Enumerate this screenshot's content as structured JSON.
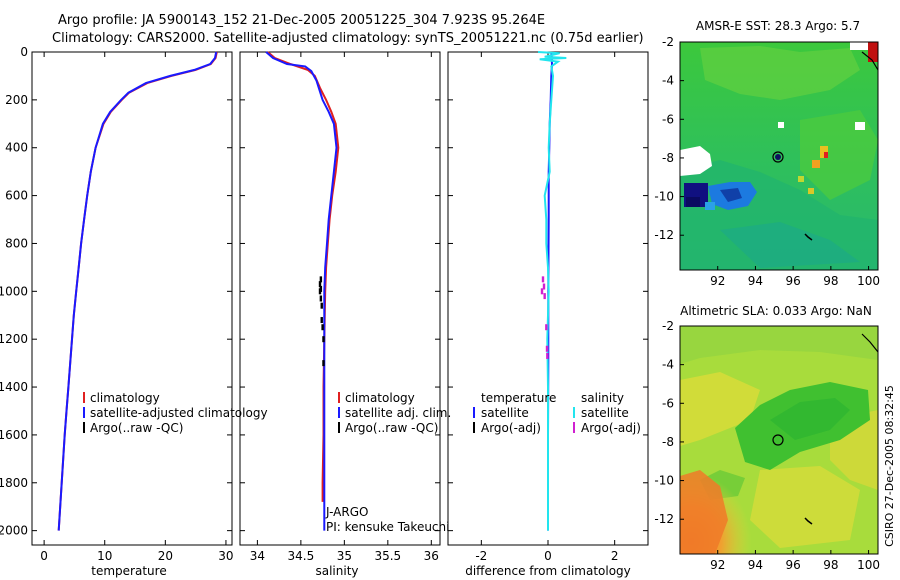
{
  "header": {
    "line1": "Argo profile: JA 5900143_152 21-Dec-2005 20051225_304 7.923S 95.264E",
    "line2": "Climatology: CARS2000. Satellite-adjusted climatology: synTS_20051221.nc (0.75d earlier)"
  },
  "side_stamp": "CSIRO 27-Dec-2005 08:32:45",
  "colors": {
    "climatology": "#e02020",
    "satellite": "#1a1aff",
    "argo": "#000000",
    "sal_satellite": "#22e5ee",
    "sal_argo": "#d020d0"
  },
  "chart_data": [
    {
      "type": "line",
      "xlabel": "temperature",
      "ylabel": "",
      "xlim": [
        -2,
        31
      ],
      "ylim": [
        2060,
        0
      ],
      "xticks": [
        0,
        10,
        20,
        30
      ],
      "xtick_labels": [
        "0",
        "10",
        "20",
        "30"
      ],
      "yticks": [
        0,
        200,
        400,
        600,
        800,
        1000,
        1200,
        1400,
        1600,
        1800,
        2000
      ],
      "ytick_labels": [
        "0",
        "200",
        "400",
        "600",
        "800",
        "1000",
        "1200",
        "1400",
        "1600",
        "1800",
        "2000"
      ],
      "legend": [
        "climatology",
        "satellite-adjusted climatology",
        "Argo(..raw -QC)"
      ],
      "series": [
        {
          "name": "climatology",
          "color_key": "climatology",
          "points": [
            [
              28.5,
              0
            ],
            [
              28.3,
              25
            ],
            [
              27.5,
              50
            ],
            [
              25,
              75
            ],
            [
              21,
              100
            ],
            [
              17,
              130
            ],
            [
              14,
              170
            ],
            [
              12.8,
              200
            ],
            [
              11,
              250
            ],
            [
              9.8,
              300
            ],
            [
              8.5,
              400
            ],
            [
              7.7,
              500
            ],
            [
              7.1,
              600
            ],
            [
              6.6,
              700
            ],
            [
              6.1,
              800
            ],
            [
              5.7,
              900
            ],
            [
              5.3,
              1000
            ],
            [
              4.9,
              1100
            ],
            [
              4.6,
              1200
            ],
            [
              4.3,
              1300
            ],
            [
              4,
              1400
            ],
            [
              3.7,
              1500
            ],
            [
              3.4,
              1600
            ],
            [
              3.15,
              1700
            ],
            [
              2.9,
              1800
            ],
            [
              2.65,
              1900
            ],
            [
              2.4,
              2000
            ]
          ]
        },
        {
          "name": "satellite-adjusted climatology",
          "color_key": "satellite",
          "points": [
            [
              28.4,
              0
            ],
            [
              28.2,
              25
            ],
            [
              27.4,
              50
            ],
            [
              24.8,
              75
            ],
            [
              20.8,
              100
            ],
            [
              16.8,
              130
            ],
            [
              13.9,
              170
            ],
            [
              12.7,
              200
            ],
            [
              10.9,
              250
            ],
            [
              9.7,
              300
            ],
            [
              8.5,
              400
            ],
            [
              7.7,
              500
            ],
            [
              7.1,
              600
            ],
            [
              6.6,
              700
            ],
            [
              6.1,
              800
            ],
            [
              5.7,
              900
            ],
            [
              5.3,
              1000
            ],
            [
              4.9,
              1100
            ],
            [
              4.6,
              1200
            ],
            [
              4.3,
              1300
            ],
            [
              4,
              1400
            ],
            [
              3.7,
              1500
            ],
            [
              3.4,
              1600
            ],
            [
              3.15,
              1700
            ],
            [
              2.9,
              1800
            ],
            [
              2.65,
              1900
            ],
            [
              2.4,
              2000
            ]
          ]
        }
      ]
    },
    {
      "type": "line",
      "xlabel": "salinity",
      "xlim": [
        33.8,
        36.1
      ],
      "ylim": [
        2060,
        0
      ],
      "xticks": [
        34,
        34.5,
        35,
        35.5,
        36
      ],
      "xtick_labels": [
        "34",
        "34.5",
        "35",
        "35.5",
        "36"
      ],
      "legend": [
        "climatology",
        "satellite adj. clim.",
        "Argo(..raw -QC)"
      ],
      "annotation": [
        "J-ARGO",
        "PI: kensuke Takeuchi"
      ],
      "series": [
        {
          "name": "climatology",
          "color_key": "climatology",
          "points": [
            [
              34.12,
              0
            ],
            [
              34.2,
              25
            ],
            [
              34.38,
              50
            ],
            [
              34.58,
              75
            ],
            [
              34.66,
              100
            ],
            [
              34.72,
              150
            ],
            [
              34.79,
              200
            ],
            [
              34.85,
              250
            ],
            [
              34.9,
              300
            ],
            [
              34.93,
              400
            ],
            [
              34.9,
              500
            ],
            [
              34.86,
              600
            ],
            [
              34.83,
              700
            ],
            [
              34.81,
              800
            ],
            [
              34.79,
              900
            ],
            [
              34.78,
              1000
            ],
            [
              34.77,
              1200
            ],
            [
              34.76,
              1400
            ],
            [
              34.76,
              1600
            ],
            [
              34.75,
              1800
            ],
            [
              34.75,
              1880
            ]
          ]
        },
        {
          "name": "satellite adj. clim.",
          "color_key": "satellite",
          "points": [
            [
              34.1,
              0
            ],
            [
              34.18,
              25
            ],
            [
              34.34,
              50
            ],
            [
              34.55,
              60
            ],
            [
              34.62,
              80
            ],
            [
              34.68,
              120
            ],
            [
              34.75,
              200
            ],
            [
              34.82,
              250
            ],
            [
              34.88,
              300
            ],
            [
              34.91,
              400
            ],
            [
              34.88,
              500
            ],
            [
              34.85,
              600
            ],
            [
              34.82,
              700
            ],
            [
              34.8,
              800
            ],
            [
              34.78,
              900
            ],
            [
              34.77,
              1000
            ],
            [
              34.77,
              1200
            ],
            [
              34.77,
              1400
            ],
            [
              34.77,
              1600
            ],
            [
              34.77,
              1800
            ],
            [
              34.77,
              2000
            ]
          ]
        },
        {
          "name": "Argo(..raw -QC)",
          "color_key": "argo",
          "style": "dots",
          "points": [
            [
              34.73,
              950
            ],
            [
              34.72,
              970
            ],
            [
              34.73,
              990
            ],
            [
              34.72,
              1000
            ],
            [
              34.73,
              1030
            ],
            [
              34.74,
              1060
            ],
            [
              34.74,
              1120
            ],
            [
              34.75,
              1150
            ],
            [
              34.76,
              1200
            ],
            [
              34.76,
              1300
            ]
          ]
        }
      ]
    },
    {
      "type": "line",
      "xlabel": "difference from climatology",
      "xlim": [
        -3,
        3
      ],
      "ylim": [
        2060,
        0
      ],
      "xticks": [
        -2,
        0,
        2
      ],
      "xtick_labels": [
        "-2",
        "0",
        "2"
      ],
      "legend_left_title": "temperature",
      "legend_left": [
        "satellite",
        "Argo(-adj)"
      ],
      "legend_right_title": "salinity",
      "legend_right": [
        "satellite",
        "Argo(-adj)"
      ],
      "series": [
        {
          "name": "temperature satellite",
          "color_key": "satellite",
          "points": [
            [
              0.1,
              0
            ],
            [
              0.12,
              50
            ],
            [
              0.1,
              100
            ],
            [
              0.08,
              200
            ],
            [
              0.05,
              300
            ],
            [
              0.04,
              400
            ],
            [
              0.02,
              500
            ],
            [
              0.02,
              700
            ],
            [
              0.01,
              1000
            ],
            [
              0.01,
              1300
            ],
            [
              0,
              1600
            ],
            [
              0,
              2000
            ]
          ]
        },
        {
          "name": "salinity satellite",
          "color_key": "sal_satellite",
          "points": [
            [
              -0.3,
              0
            ],
            [
              0.35,
              5
            ],
            [
              -0.1,
              20
            ],
            [
              0.55,
              25
            ],
            [
              -0.25,
              30
            ],
            [
              0.3,
              40
            ],
            [
              0.1,
              60
            ],
            [
              0.15,
              100
            ],
            [
              0.1,
              200
            ],
            [
              0.05,
              300
            ],
            [
              0.02,
              400
            ],
            [
              0.05,
              500
            ],
            [
              -0.1,
              600
            ],
            [
              -0.05,
              700
            ],
            [
              -0.05,
              800
            ],
            [
              0,
              900
            ],
            [
              0.02,
              1000
            ],
            [
              -0.02,
              1200
            ],
            [
              0,
              1400
            ],
            [
              0,
              1600
            ],
            [
              0,
              1800
            ],
            [
              0,
              2000
            ]
          ]
        },
        {
          "name": "salinity Argo(-adj)",
          "color_key": "sal_argo",
          "style": "dots",
          "points": [
            [
              -0.15,
              950
            ],
            [
              -0.12,
              980
            ],
            [
              -0.18,
              1000
            ],
            [
              -0.1,
              1020
            ],
            [
              -0.05,
              1150
            ],
            [
              -0.03,
              1240
            ],
            [
              -0.02,
              1270
            ]
          ]
        }
      ]
    },
    {
      "type": "heatmap",
      "title": "AMSR-E SST: 28.3 Argo: 5.7",
      "xlim": [
        90,
        100.5
      ],
      "ylim": [
        -13.8,
        -2
      ],
      "xticks": [
        92,
        94,
        96,
        98,
        100
      ],
      "xtick_labels": [
        "92",
        "94",
        "96",
        "98",
        "100"
      ],
      "yticks": [
        -2,
        -4,
        -6,
        -8,
        -10,
        -12
      ],
      "ytick_labels": [
        "-2",
        "-4",
        "-6",
        "-8",
        "-10",
        "-12"
      ],
      "argo_position": [
        95.264,
        -7.923
      ]
    },
    {
      "type": "heatmap",
      "title": "Altimetric SLA: 0.033 Argo: NaN",
      "xlim": [
        90,
        100.5
      ],
      "ylim": [
        -13.8,
        -2
      ],
      "xticks": [
        92,
        94,
        96,
        98,
        100
      ],
      "xtick_labels": [
        "92",
        "94",
        "96",
        "98",
        "100"
      ],
      "yticks": [
        -2,
        -4,
        -6,
        -8,
        -10,
        -12
      ],
      "ytick_labels": [
        "-2",
        "-4",
        "-6",
        "-8",
        "-10",
        "-12"
      ],
      "argo_position": [
        95.264,
        -7.923
      ]
    }
  ]
}
